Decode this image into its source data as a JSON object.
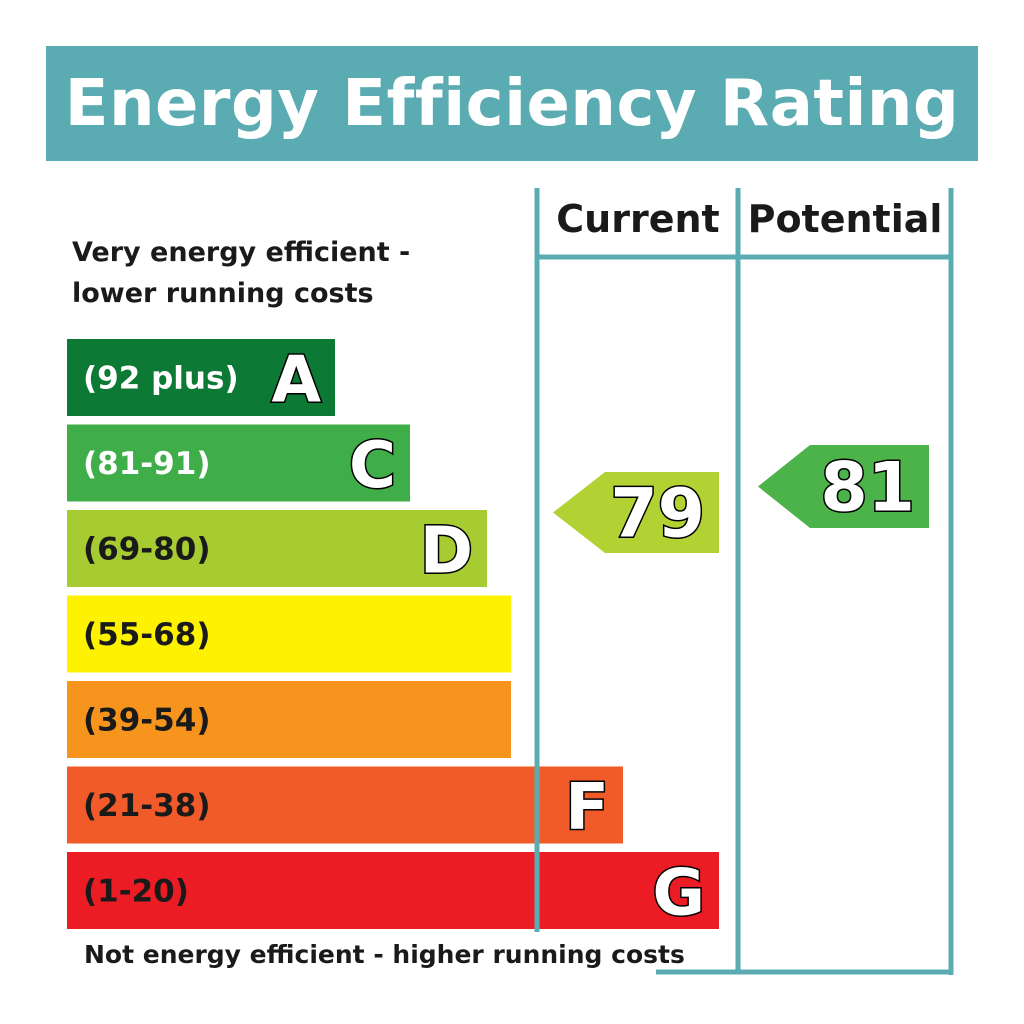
{
  "colors": {
    "teal": "#5aacb2",
    "band_A": "#0c7a34",
    "band_C": "#3fae49",
    "band_D": "#a6cc32",
    "band_55_68": "#fff200",
    "band_39_54": "#f7941d",
    "band_F": "#f15a29",
    "band_G": "#ec1c24"
  },
  "header": {
    "title": "Energy Efficiency Rating"
  },
  "notes": {
    "top": "Very energy efficient - lower running costs",
    "bottom": "Not energy efficient - higher running costs"
  },
  "columns": {
    "current": "Current",
    "potential": "Potential"
  },
  "chart_data": {
    "type": "bar",
    "bands": [
      {
        "range": "(92 plus)",
        "letter": "A",
        "color": "#0c7a34",
        "text_color": "#ffffff",
        "min": 92,
        "max": 100
      },
      {
        "range": "(81-91)",
        "letter": "C",
        "color": "#3fae49",
        "text_color": "#ffffff",
        "min": 81,
        "max": 91
      },
      {
        "range": "(69-80)",
        "letter": "D",
        "color": "#a6cc32",
        "text_color": "#1a1a1a",
        "min": 69,
        "max": 80
      },
      {
        "range": "(55-68)",
        "letter": "",
        "color": "#fff200",
        "text_color": "#1a1a1a",
        "min": 55,
        "max": 68
      },
      {
        "range": "(39-54)",
        "letter": "",
        "color": "#f7941d",
        "text_color": "#1a1a1a",
        "min": 39,
        "max": 54
      },
      {
        "range": "(21-38)",
        "letter": "F",
        "color": "#f15a29",
        "text_color": "#1a1a1a",
        "min": 21,
        "max": 38
      },
      {
        "range": "(1-20)",
        "letter": "G",
        "color": "#ec1c24",
        "text_color": "#1a1a1a",
        "min": 1,
        "max": 20
      }
    ],
    "ratings": {
      "current": {
        "value": 79,
        "color": "#b2d234"
      },
      "potential": {
        "value": 81,
        "color": "#4cb24a"
      }
    }
  }
}
